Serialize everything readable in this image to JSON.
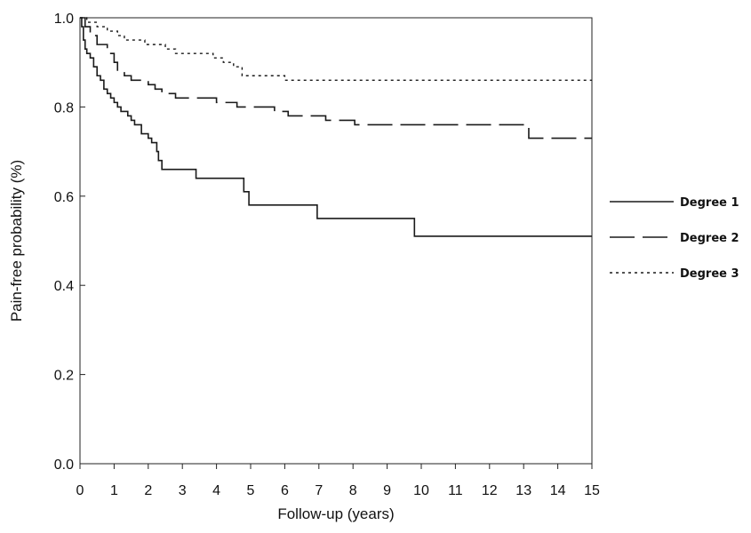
{
  "chart_data": {
    "type": "line",
    "step": true,
    "title": "",
    "xlabel": "Follow-up (years)",
    "ylabel": "Pain-free probability (%)",
    "xlim": [
      0,
      15
    ],
    "ylim": [
      0,
      1.0
    ],
    "x_ticks": [
      "0",
      "1",
      "2",
      "3",
      "4",
      "5",
      "6",
      "7",
      "8",
      "9",
      "10",
      "11",
      "12",
      "13",
      "14",
      "15"
    ],
    "y_ticks": [
      "0.0",
      "0.2",
      "0.4",
      "0.6",
      "0.8",
      "1.0"
    ],
    "grid": false,
    "legend_position": "right",
    "series": [
      {
        "name": "Degree 1",
        "style": "solid",
        "points": [
          [
            0,
            1.0
          ],
          [
            0.05,
            0.98
          ],
          [
            0.1,
            0.95
          ],
          [
            0.15,
            0.93
          ],
          [
            0.2,
            0.92
          ],
          [
            0.3,
            0.91
          ],
          [
            0.4,
            0.89
          ],
          [
            0.5,
            0.87
          ],
          [
            0.6,
            0.86
          ],
          [
            0.7,
            0.84
          ],
          [
            0.8,
            0.83
          ],
          [
            0.9,
            0.82
          ],
          [
            1.0,
            0.81
          ],
          [
            1.1,
            0.8
          ],
          [
            1.2,
            0.79
          ],
          [
            1.4,
            0.78
          ],
          [
            1.5,
            0.77
          ],
          [
            1.6,
            0.76
          ],
          [
            1.8,
            0.74
          ],
          [
            2.0,
            0.73
          ],
          [
            2.1,
            0.72
          ],
          [
            2.25,
            0.7
          ],
          [
            2.3,
            0.68
          ],
          [
            2.4,
            0.66
          ],
          [
            3.4,
            0.64
          ],
          [
            4.8,
            0.61
          ],
          [
            4.95,
            0.58
          ],
          [
            6.95,
            0.55
          ],
          [
            9.8,
            0.51
          ],
          [
            15,
            0.51
          ]
        ]
      },
      {
        "name": "Degree 2",
        "style": "dashed",
        "points": [
          [
            0,
            1.0
          ],
          [
            0.15,
            0.98
          ],
          [
            0.3,
            0.96
          ],
          [
            0.5,
            0.94
          ],
          [
            0.8,
            0.92
          ],
          [
            1.0,
            0.9
          ],
          [
            1.1,
            0.88
          ],
          [
            1.3,
            0.87
          ],
          [
            1.5,
            0.86
          ],
          [
            1.8,
            0.86
          ],
          [
            2.0,
            0.85
          ],
          [
            2.2,
            0.84
          ],
          [
            2.4,
            0.83
          ],
          [
            2.6,
            0.83
          ],
          [
            2.8,
            0.82
          ],
          [
            3.9,
            0.82
          ],
          [
            4.0,
            0.81
          ],
          [
            4.6,
            0.8
          ],
          [
            5.2,
            0.8
          ],
          [
            5.7,
            0.79
          ],
          [
            6.1,
            0.78
          ],
          [
            6.7,
            0.78
          ],
          [
            7.2,
            0.77
          ],
          [
            7.9,
            0.77
          ],
          [
            8.05,
            0.76
          ],
          [
            13.05,
            0.76
          ],
          [
            13.15,
            0.73
          ],
          [
            15,
            0.73
          ]
        ]
      },
      {
        "name": "Degree 3",
        "style": "dotted",
        "points": [
          [
            0,
            1.0
          ],
          [
            0.2,
            0.99
          ],
          [
            0.5,
            0.98
          ],
          [
            0.8,
            0.97
          ],
          [
            1.1,
            0.96
          ],
          [
            1.3,
            0.95
          ],
          [
            1.7,
            0.95
          ],
          [
            1.9,
            0.94
          ],
          [
            2.2,
            0.94
          ],
          [
            2.5,
            0.93
          ],
          [
            2.8,
            0.92
          ],
          [
            3.6,
            0.92
          ],
          [
            3.9,
            0.91
          ],
          [
            4.2,
            0.9
          ],
          [
            4.5,
            0.89
          ],
          [
            4.75,
            0.87
          ],
          [
            5.8,
            0.87
          ],
          [
            6.0,
            0.86
          ],
          [
            15,
            0.86
          ]
        ]
      }
    ]
  }
}
